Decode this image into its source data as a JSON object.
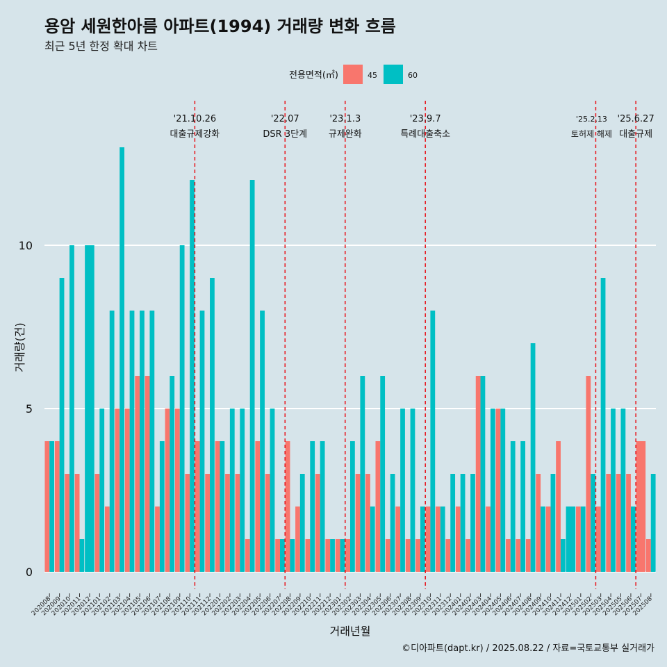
{
  "chart_data": {
    "type": "bar",
    "title": "용암 세원한아름 아파트(1994) 거래량 변화 흐름",
    "subtitle": "최근 5년 한정 확대 차트",
    "xlabel": "거래년월",
    "ylabel": "거래량(건)",
    "caption": "©디아파트(dapt.kr) / 2025.08.22 / 자료=국토교통부 실거래가",
    "ylim": [
      -0.6,
      13.5
    ],
    "yticks": [
      0,
      5,
      10
    ],
    "legend": {
      "title": "전용면적(㎡)",
      "position": "top"
    },
    "colors": {
      "45": "#f8766d",
      "60": "#00bfc4",
      "grid": "#ffffff",
      "event_line": "#e8141b",
      "background": "#d6e4ea"
    },
    "categories": [
      "202008",
      "202009",
      "202010",
      "202011",
      "202012",
      "202101",
      "202102",
      "202103",
      "202104",
      "202105",
      "202106",
      "202107",
      "202108",
      "202109",
      "202110",
      "202111",
      "202112",
      "202201",
      "202202",
      "202203",
      "202204",
      "202205",
      "202206",
      "202207",
      "202208",
      "202209",
      "202210",
      "202211",
      "202212",
      "202301",
      "202302",
      "202303",
      "202304",
      "202305",
      "202306",
      "202307",
      "202308",
      "202309",
      "202310",
      "202311",
      "202312",
      "202401",
      "202402",
      "202403",
      "202404",
      "202405",
      "202406",
      "202407",
      "202408",
      "202409",
      "202410",
      "202411",
      "202412",
      "202501",
      "202502",
      "202503",
      "202504",
      "202505",
      "202506",
      "202507",
      "202508"
    ],
    "series": [
      {
        "name": "45",
        "values": [
          4,
          4,
          3,
          3,
          0,
          3,
          2,
          5,
          5,
          6,
          6,
          2,
          5,
          5,
          3,
          4,
          3,
          4,
          3,
          3,
          1,
          4,
          3,
          1,
          4,
          2,
          1,
          3,
          1,
          1,
          1,
          3,
          3,
          4,
          1,
          2,
          1,
          1,
          2,
          2,
          1,
          2,
          1,
          6,
          2,
          5,
          1,
          1,
          1,
          3,
          2,
          4,
          0,
          2,
          6,
          2,
          3,
          3,
          3,
          4,
          1
        ]
      },
      {
        "name": "60",
        "values": [
          4,
          9,
          10,
          1,
          10,
          5,
          8,
          13,
          8,
          8,
          8,
          4,
          6,
          10,
          12,
          8,
          9,
          4,
          5,
          5,
          12,
          8,
          5,
          1,
          1,
          3,
          4,
          4,
          1,
          1,
          4,
          6,
          2,
          6,
          3,
          5,
          5,
          2,
          8,
          2,
          3,
          3,
          3,
          6,
          5,
          5,
          4,
          4,
          7,
          2,
          3,
          1,
          2,
          2,
          3,
          9,
          5,
          5,
          2,
          0,
          3
        ]
      }
    ],
    "single_category": [
      4,
      52,
      59
    ],
    "events": [
      {
        "after": "202110",
        "date": "'21.10.26",
        "label": "대출규제강화"
      },
      {
        "after": "202207",
        "date": "'22.07",
        "label": "DSR 3단계"
      },
      {
        "after": "202301",
        "date": "'23.1.3",
        "label": "규제완화"
      },
      {
        "after": "202309",
        "date": "'23.9.7",
        "label": "특례대출축소"
      },
      {
        "after": "202502",
        "date": "'25.2.13",
        "label": "토허제 해제"
      },
      {
        "after": "202506",
        "date": "'25.6.27",
        "label": "대출규제"
      }
    ]
  }
}
